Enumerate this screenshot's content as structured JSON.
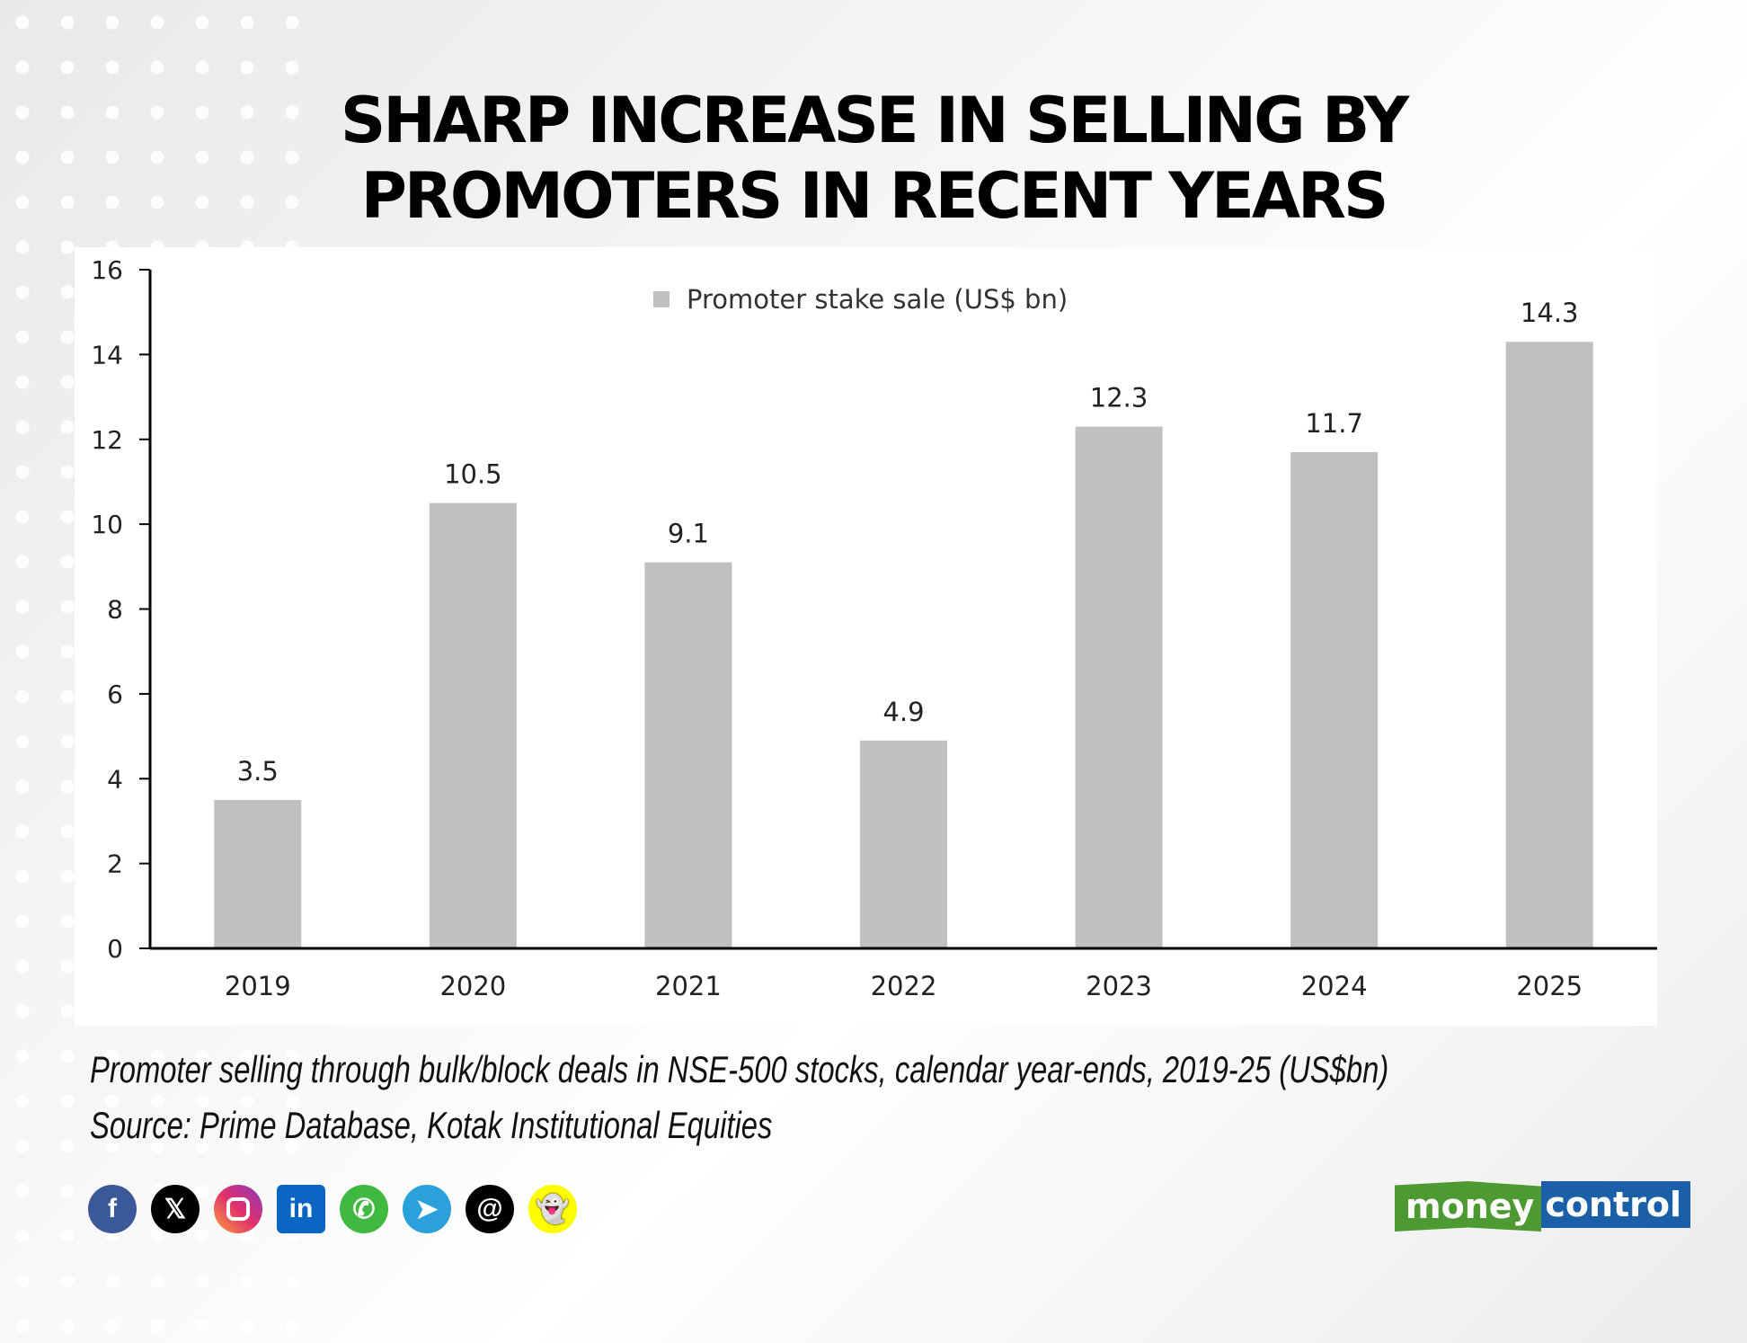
{
  "chart_data": {
    "type": "bar",
    "title": "SHARP INCREASE IN SELLING BY PROMOTERS IN RECENT YEARS",
    "title_lines": [
      "SHARP INCREASE IN SELLING BY",
      "PROMOTERS IN RECENT YEARS"
    ],
    "categories": [
      "2019",
      "2020",
      "2021",
      "2022",
      "2023",
      "2024",
      "2025"
    ],
    "series": [
      {
        "name": "Promoter stake sale (US$ bn)",
        "values": [
          3.5,
          10.5,
          9.1,
          4.9,
          12.3,
          11.7,
          14.3
        ],
        "color": "#c0c0c0"
      }
    ],
    "data_labels": [
      "3.5",
      "10.5",
      "9.1",
      "4.9",
      "12.3",
      "11.7",
      "14.3"
    ],
    "ylim": [
      0,
      16
    ],
    "yticks": [
      "0",
      "2",
      "4",
      "6",
      "8",
      "10",
      "12",
      "14",
      "16"
    ],
    "grid": false,
    "legend": "top-center",
    "xlabel": "",
    "ylabel": ""
  },
  "caption": "Promoter selling through bulk/block deals in NSE-500 stocks, calendar year-ends, 2019-25 (US$bn)",
  "source": "Source: Prime Database, Kotak Institutional Equities",
  "social_icons": [
    "facebook-icon",
    "x-icon",
    "instagram-icon",
    "linkedin-icon",
    "whatsapp-icon",
    "telegram-icon",
    "threads-icon",
    "snapchat-icon"
  ],
  "logo": {
    "part1": "money",
    "part2": "control",
    "colors": [
      "#4e9a32",
      "#1b5fa8"
    ]
  }
}
